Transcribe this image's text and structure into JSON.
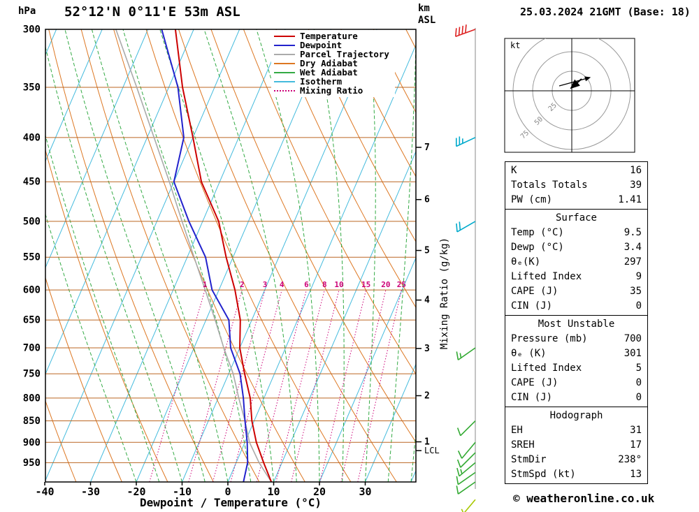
{
  "header": {
    "pressure_unit": "hPa",
    "title": "52°12'N 0°11'E 53m ASL",
    "km_label": "km",
    "asl_label": "ASL",
    "datetime": "25.03.2024 21GMT (Base: 18)"
  },
  "legend": [
    {
      "label": "Temperature",
      "color": "#cc0000",
      "style": "solid"
    },
    {
      "label": "Dewpoint",
      "color": "#2222cc",
      "style": "solid"
    },
    {
      "label": "Parcel Trajectory",
      "color": "#aaaaaa",
      "style": "solid"
    },
    {
      "label": "Dry Adiabat",
      "color": "#dd7722",
      "style": "solid"
    },
    {
      "label": "Wet Adiabat",
      "color": "#33aa44",
      "style": "solid"
    },
    {
      "label": "Isotherm",
      "color": "#44bbdd",
      "style": "solid"
    },
    {
      "label": "Mixing Ratio",
      "color": "#cc0077",
      "style": "dotted"
    }
  ],
  "colors": {
    "temperature": "#cc0000",
    "dewpoint": "#2222cc",
    "parcel": "#aaaaaa",
    "dry_adiabat": "#dd7722",
    "wet_adiabat": "#33aa44",
    "isotherm": "#44bbdd",
    "mixing_ratio": "#cc0077",
    "pressure_line": "#bb6622"
  },
  "chart_data": {
    "type": "line",
    "variant": "skew-t log-p sounding",
    "pressure_axis": {
      "unit": "hPa",
      "ticks": [
        300,
        350,
        400,
        450,
        500,
        550,
        600,
        650,
        700,
        750,
        800,
        850,
        900,
        950
      ],
      "range": [
        300,
        1000
      ]
    },
    "temperature_axis": {
      "unit": "°C",
      "label": "Dewpoint / Temperature (°C)",
      "ticks": [
        -40,
        -30,
        -20,
        -10,
        0,
        10,
        20,
        30
      ]
    },
    "altitude_axis": {
      "unit_line1": "km",
      "unit_line2": "ASL",
      "ticks": [
        1,
        2,
        3,
        4,
        5,
        6,
        7
      ],
      "lcl_label": "LCL",
      "lcl_pressure": 920
    },
    "mixing_ratio": {
      "label": "Mixing Ratio (g/kg)",
      "values": [
        1,
        2,
        3,
        4,
        6,
        8,
        10,
        15,
        20,
        25
      ]
    },
    "temperature_profile": [
      [
        300,
        -54
      ],
      [
        350,
        -47
      ],
      [
        400,
        -40
      ],
      [
        450,
        -34
      ],
      [
        500,
        -26.5
      ],
      [
        550,
        -21.5
      ],
      [
        600,
        -16.5
      ],
      [
        650,
        -12.5
      ],
      [
        700,
        -10
      ],
      [
        750,
        -6.5
      ],
      [
        800,
        -3
      ],
      [
        850,
        -0.5
      ],
      [
        900,
        2.5
      ],
      [
        950,
        6
      ],
      [
        1000,
        9.5
      ]
    ],
    "dewpoint_profile": [
      [
        300,
        -57
      ],
      [
        350,
        -48
      ],
      [
        400,
        -42
      ],
      [
        450,
        -40
      ],
      [
        500,
        -33
      ],
      [
        550,
        -26
      ],
      [
        600,
        -21.5
      ],
      [
        650,
        -15
      ],
      [
        700,
        -12
      ],
      [
        750,
        -7.5
      ],
      [
        800,
        -4.5
      ],
      [
        850,
        -2
      ],
      [
        900,
        0.5
      ],
      [
        950,
        2.5
      ],
      [
        1000,
        3.4
      ]
    ],
    "parcel_profile": [
      [
        300,
        -67
      ],
      [
        350,
        -57
      ],
      [
        400,
        -48.5
      ],
      [
        450,
        -41
      ],
      [
        500,
        -34.5
      ],
      [
        550,
        -28.5
      ],
      [
        600,
        -23
      ],
      [
        650,
        -18
      ],
      [
        700,
        -13.5
      ],
      [
        750,
        -9
      ],
      [
        800,
        -5.5
      ],
      [
        850,
        -2
      ],
      [
        900,
        1
      ],
      [
        950,
        5
      ],
      [
        1000,
        9.5
      ]
    ],
    "wind_barbs": [
      {
        "p": 300,
        "dir": 250,
        "speed": 40,
        "color": "#dd2222"
      },
      {
        "p": 400,
        "dir": 245,
        "speed": 25,
        "color": "#00aacc"
      },
      {
        "p": 500,
        "dir": 240,
        "speed": 20,
        "color": "#00aacc"
      },
      {
        "p": 700,
        "dir": 235,
        "speed": 15,
        "color": "#33aa33"
      },
      {
        "p": 850,
        "dir": 225,
        "speed": 10,
        "color": "#33aa33"
      },
      {
        "p": 900,
        "dir": 220,
        "speed": 10,
        "color": "#33aa33"
      },
      {
        "p": 925,
        "dir": 225,
        "speed": 10,
        "color": "#33aa33"
      },
      {
        "p": 950,
        "dir": 230,
        "speed": 15,
        "color": "#33aa33"
      },
      {
        "p": 975,
        "dir": 235,
        "speed": 10,
        "color": "#33aa33"
      },
      {
        "p": 1000,
        "dir": 235,
        "speed": 10,
        "color": "#33aa33"
      },
      {
        "p": 1048,
        "dir": 220,
        "speed": 5,
        "color": "#a8c800"
      }
    ],
    "hodograph": {
      "unit": "kt",
      "rings": [
        25,
        50,
        75
      ]
    }
  },
  "tables": [
    {
      "name": "indices",
      "header": null,
      "rows": [
        [
          "K",
          "16"
        ],
        [
          "Totals Totals",
          "39"
        ],
        [
          "PW (cm)",
          "1.41"
        ]
      ]
    },
    {
      "name": "surface",
      "header": "Surface",
      "rows": [
        [
          "Temp (°C)",
          "9.5"
        ],
        [
          "Dewp (°C)",
          "3.4"
        ],
        [
          "θₑ(K)",
          "297"
        ],
        [
          "Lifted Index",
          "9"
        ],
        [
          "CAPE (J)",
          "35"
        ],
        [
          "CIN (J)",
          "0"
        ]
      ]
    },
    {
      "name": "most-unstable",
      "header": "Most Unstable",
      "rows": [
        [
          "Pressure (mb)",
          "700"
        ],
        [
          "θₑ (K)",
          "301"
        ],
        [
          "Lifted Index",
          "5"
        ],
        [
          "CAPE (J)",
          "0"
        ],
        [
          "CIN (J)",
          "0"
        ]
      ]
    },
    {
      "name": "hodograph",
      "header": "Hodograph",
      "rows": [
        [
          "EH",
          "31"
        ],
        [
          "SREH",
          "17"
        ],
        [
          "StmDir",
          "238°"
        ],
        [
          "StmSpd (kt)",
          "13"
        ]
      ]
    }
  ],
  "footer": {
    "copyright": "© weatheronline.co.uk"
  }
}
